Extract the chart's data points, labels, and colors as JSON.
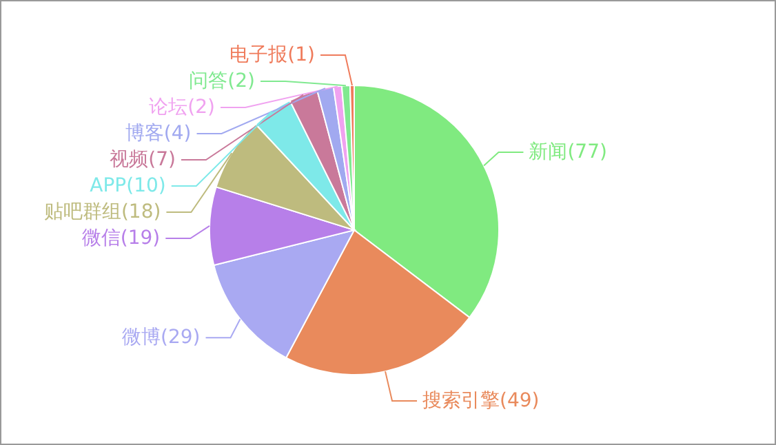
{
  "chart_data": {
    "type": "pie",
    "categories": [
      "新闻",
      "搜索引擎",
      "微博",
      "微信",
      "贴吧群组",
      "APP",
      "视频",
      "博客",
      "论坛",
      "问答",
      "电子报"
    ],
    "values": [
      77,
      49,
      29,
      19,
      18,
      10,
      7,
      4,
      2,
      2,
      1
    ],
    "colors": [
      "#80ea80",
      "#e98a5c",
      "#a9a9f2",
      "#b77fe9",
      "#bebb7e",
      "#7ee9e9",
      "#c9799a",
      "#a1a9f0",
      "#f0a2f0",
      "#80e990",
      "#ef7b5b"
    ],
    "value_labels": [
      "(77)",
      "(49)",
      "(29)",
      "(19)",
      "(18)",
      "(10)",
      "(7)",
      "(4)",
      "(2)",
      "(2)",
      "(1)"
    ],
    "legend": false
  }
}
